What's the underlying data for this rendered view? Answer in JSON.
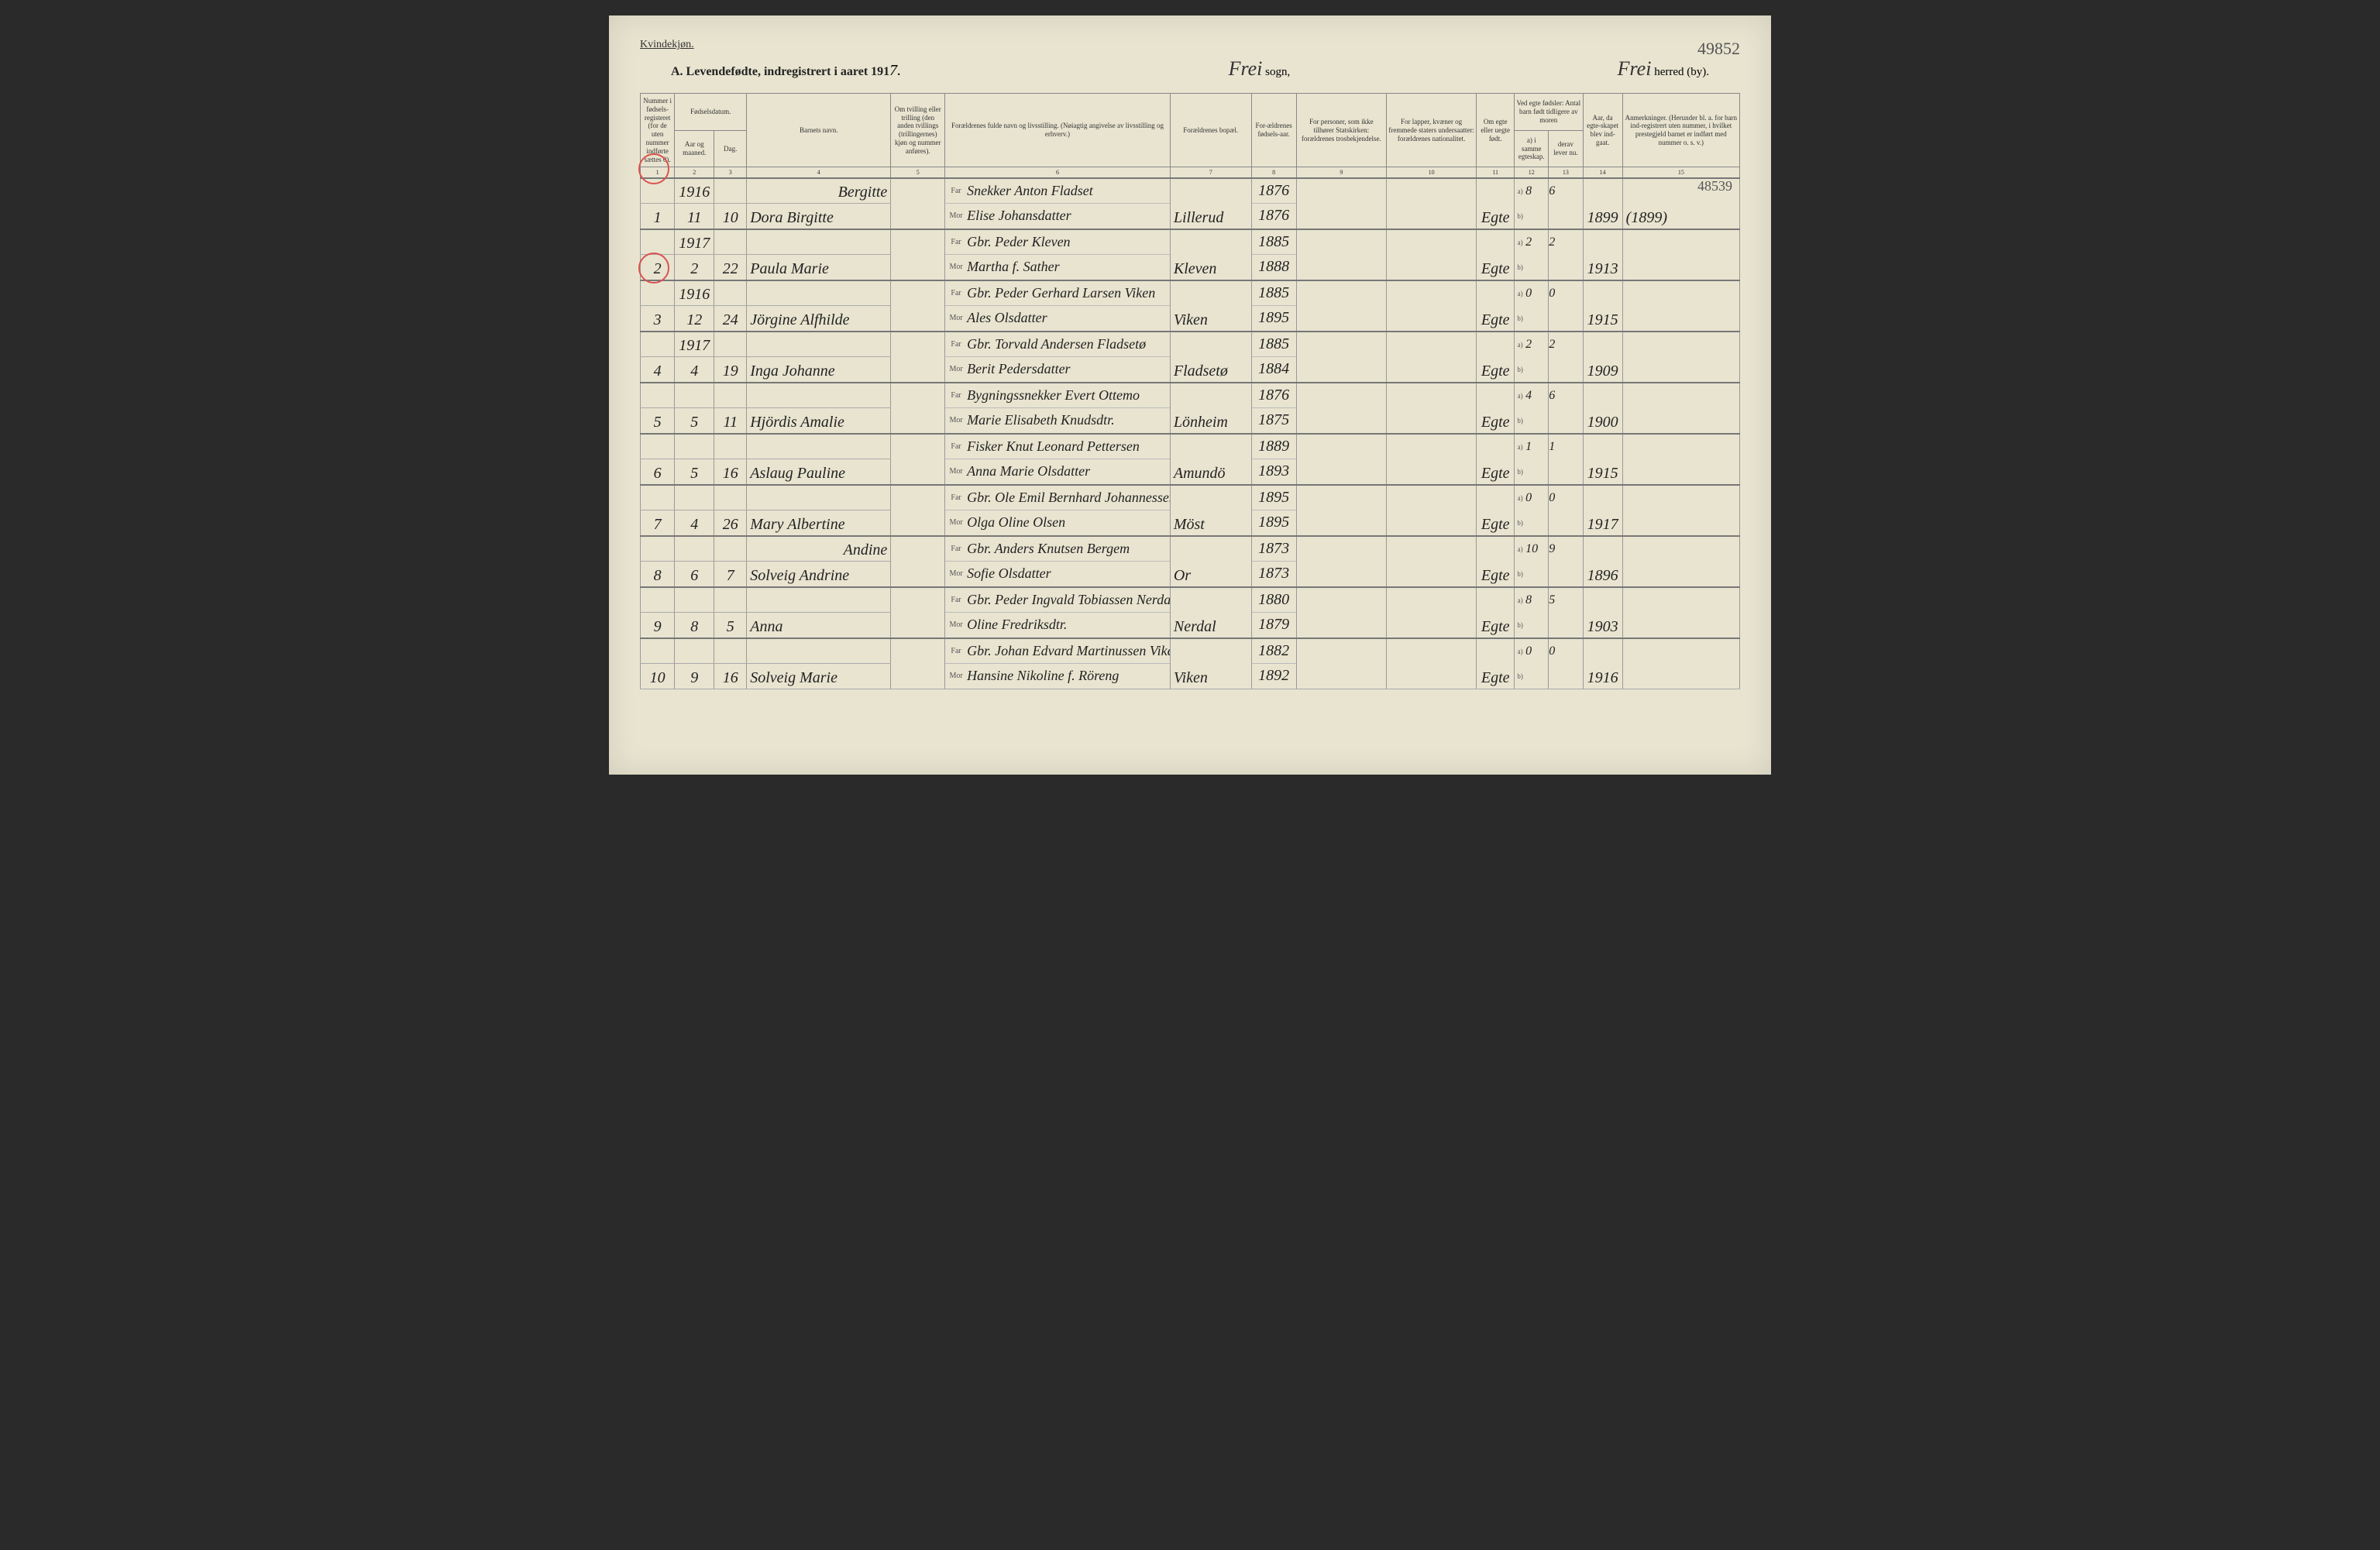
{
  "header": {
    "gender": "Kvindekjøn.",
    "title_prefix": "A.  Levendefødte, indregistrert i aaret 191",
    "year_digit": "7.",
    "sogn_script": "Frei",
    "sogn_label": " sogn,",
    "herred_script": "Frei",
    "herred_label": " herred (by).",
    "corner_number": "49852",
    "side_number": "48539"
  },
  "columns": {
    "c1": "Nummer i fødsels-registeret (for de uten nummer indførte sættes 0).",
    "c2": "Fødselsdatum.",
    "c2a": "Aar og maaned.",
    "c2b": "Dag.",
    "c4": "Barnets navn.",
    "c5": "Om tvilling eller trilling (den anden tvillings (trillingernes) kjøn og nummer anføres).",
    "c6": "Forældrenes fulde navn og livsstilling. (Nøiagtig angivelse av livsstilling og erhverv.)",
    "c7": "Forældrenes bopæl.",
    "c8": "For-ældrenes fødsels-aar.",
    "c9": "For personer, som ikke tilhører Statskirken: forældrenes trosbekjendelse.",
    "c10": "For lapper, kvæner og fremmede staters undersaatter: forældrenes nationalitet.",
    "c11": "Om egte eller uegte født.",
    "c12": "Ved egte fødsler: Antal barn født tidligere av moren",
    "c12a": "a) i samme egteskap.",
    "c12b": "b) i tidligere egteskap.",
    "c13a": "derav lever nu.",
    "c13b": "derav lever nu.",
    "c14": "Aar, da egte-skapet blev ind-gaat.",
    "c15": "Anmerkninger. (Herunder bl. a. for barn ind-registrert uten nummer, i hvilket prestegjeld barnet er indført med nummer o. s. v.)",
    "far": "Far",
    "mor": "Mor",
    "a": "a)",
    "b": "b)"
  },
  "colnums": [
    "1",
    "2",
    "3",
    "4",
    "5",
    "6",
    "7",
    "8",
    "9",
    "10",
    "11",
    "12",
    "13",
    "14",
    "15"
  ],
  "rows": [
    {
      "num": "1",
      "year_top": "1916",
      "month": "11",
      "day": "10",
      "name_top": "Bergitte",
      "name": "Dora Birgitte",
      "far": "Snekker Anton Fladset",
      "mor": "Elise Johansdatter",
      "bopael": "Lillerud",
      "fy": "1876",
      "my": "1876",
      "egte": "Egte",
      "na": "8",
      "nl": "6",
      "mar": "1899",
      "rem": "(1899)",
      "circle": true
    },
    {
      "num": "2",
      "year_top": "1917",
      "month": "2",
      "day": "22",
      "name_top": "",
      "name": "Paula Marie",
      "far": "Gbr. Peder Kleven",
      "mor": "Martha f. Sather",
      "bopael": "Kleven",
      "fy": "1885",
      "my": "1888",
      "egte": "Egte",
      "na": "2",
      "nl": "2",
      "mar": "1913",
      "rem": ""
    },
    {
      "num": "3",
      "year_top": "1916",
      "month": "12",
      "day": "24",
      "name_top": "",
      "name": "Jörgine Alfhilde",
      "far": "Gbr. Peder Gerhard Larsen Viken",
      "mor": "Ales Olsdatter",
      "bopael": "Viken",
      "fy": "1885",
      "my": "1895",
      "egte": "Egte",
      "na": "0",
      "nl": "0",
      "mar": "1915",
      "rem": "",
      "circle": true
    },
    {
      "num": "4",
      "year_top": "1917",
      "month": "4",
      "day": "19",
      "name_top": "",
      "name": "Inga Johanne",
      "far": "Gbr. Torvald Andersen Fladsetø",
      "mor": "Berit Pedersdatter",
      "bopael": "Fladsetø",
      "fy": "1885",
      "my": "1884",
      "egte": "Egte",
      "na": "2",
      "nl": "2",
      "mar": "1909",
      "rem": ""
    },
    {
      "num": "5",
      "year_top": "",
      "month": "5",
      "day": "11",
      "name_top": "",
      "name": "Hjördis Amalie",
      "far": "Bygningssnekker Evert Ottemo",
      "mor": "Marie Elisabeth Knudsdtr.",
      "bopael": "Lönheim",
      "fy": "1876",
      "my": "1875",
      "egte": "Egte",
      "na": "4",
      "nl": "6",
      "mar": "1900",
      "rem": ""
    },
    {
      "num": "6",
      "year_top": "",
      "month": "5",
      "day": "16",
      "name_top": "",
      "name": "Aslaug Pauline",
      "far": "Fisker Knut Leonard Pettersen",
      "mor": "Anna Marie Olsdatter",
      "bopael": "Amundö",
      "fy": "1889",
      "my": "1893",
      "egte": "Egte",
      "na": "1",
      "nl": "1",
      "mar": "1915",
      "rem": ""
    },
    {
      "num": "7",
      "year_top": "",
      "month": "4",
      "day": "26",
      "name_top": "",
      "name": "Mary Albertine",
      "far": "Gbr. Ole Emil Bernhard Johannessen",
      "mor": "Olga Oline Olsen",
      "bopael": "Möst",
      "fy": "1895",
      "my": "1895",
      "egte": "Egte",
      "na": "0",
      "nl": "0",
      "mar": "1917",
      "rem": ""
    },
    {
      "num": "8",
      "year_top": "",
      "month": "6",
      "day": "7",
      "name_top": "Andine",
      "name": "Solveig Andrine",
      "far": "Gbr. Anders Knutsen Bergem",
      "mor": "Sofie Olsdatter",
      "bopael": "Or",
      "fy": "1873",
      "my": "1873",
      "egte": "Egte",
      "na": "10",
      "nl": "9",
      "mar": "1896",
      "rem": ""
    },
    {
      "num": "9",
      "year_top": "",
      "month": "8",
      "day": "5",
      "name_top": "",
      "name": "Anna",
      "far": "Gbr. Peder Ingvald Tobiassen Nerdal",
      "mor": "Oline Fredriksdtr.",
      "bopael": "Nerdal",
      "fy": "1880",
      "my": "1879",
      "egte": "Egte",
      "na": "8",
      "nl": "5",
      "mar": "1903",
      "rem": ""
    },
    {
      "num": "10",
      "year_top": "",
      "month": "9",
      "day": "16",
      "name_top": "",
      "name": "Solveig Marie",
      "far": "Gbr. Johan Edvard Martinussen Viken",
      "mor": "Hansine Nikoline f. Röreng",
      "bopael": "Viken",
      "fy": "1882",
      "my": "1892",
      "egte": "Egte",
      "na": "0",
      "nl": "0",
      "mar": "1916",
      "rem": ""
    }
  ]
}
